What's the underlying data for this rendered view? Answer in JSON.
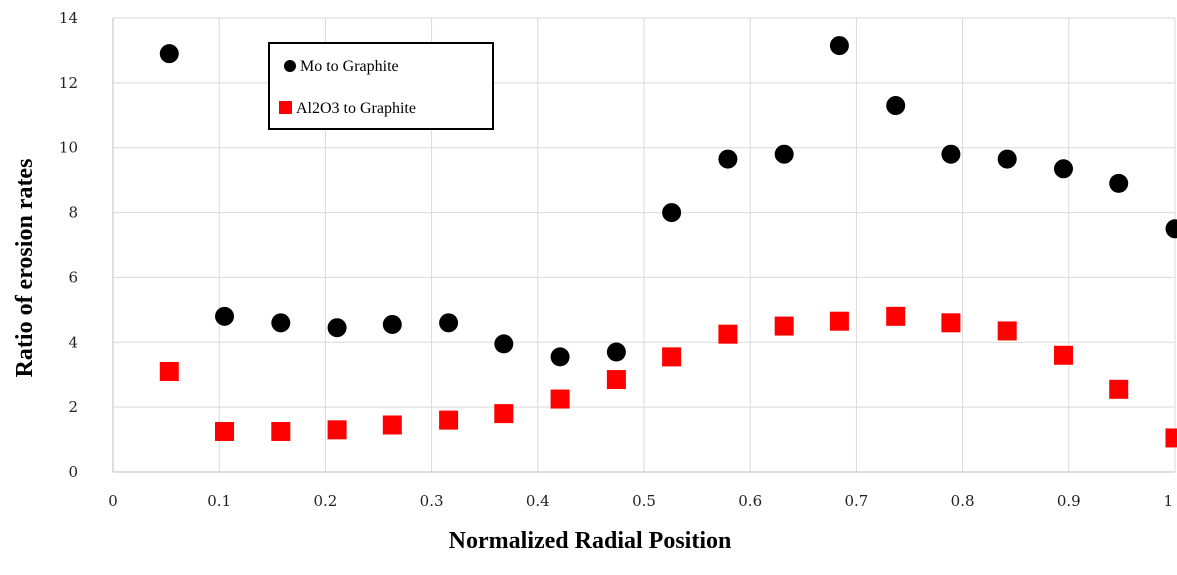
{
  "chart_data": {
    "type": "scatter",
    "xlabel": "Normalized Radial Position",
    "ylabel": "Ratio of erosion rates",
    "xlim": [
      0,
      1
    ],
    "ylim": [
      0,
      14
    ],
    "xticks": [
      0,
      0.1,
      0.2,
      0.3,
      0.4,
      0.5,
      0.6,
      0.7,
      0.8,
      0.9,
      1
    ],
    "xtick_labels": [
      "0",
      "0.1",
      "0.2",
      "0.3",
      "0.4",
      "0.5",
      "0.6",
      "0.7",
      "0.8",
      "0.9",
      "1"
    ],
    "yticks": [
      0,
      2,
      4,
      6,
      8,
      10,
      12,
      14
    ],
    "ytick_labels": [
      "0",
      "2",
      "4",
      "6",
      "8",
      "10",
      "12",
      "14"
    ],
    "grid": true,
    "legend_position": "top-left inside",
    "series": [
      {
        "name": "Mo to Graphite",
        "marker": "circle",
        "color": "#000000",
        "x": [
          0.053,
          0.105,
          0.158,
          0.211,
          0.263,
          0.316,
          0.368,
          0.421,
          0.474,
          0.526,
          0.579,
          0.632,
          0.684,
          0.737,
          0.789,
          0.842,
          0.895,
          0.947,
          1.0
        ],
        "y": [
          12.9,
          4.8,
          4.6,
          4.45,
          4.55,
          4.6,
          3.95,
          3.55,
          3.7,
          8.0,
          9.65,
          9.8,
          13.15,
          11.3,
          9.8,
          9.65,
          9.35,
          8.9,
          7.5
        ]
      },
      {
        "name": "Al2O3 to Graphite",
        "marker": "square",
        "color": "#ff0000",
        "x": [
          0.053,
          0.105,
          0.158,
          0.211,
          0.263,
          0.316,
          0.368,
          0.421,
          0.474,
          0.526,
          0.579,
          0.632,
          0.684,
          0.737,
          0.789,
          0.842,
          0.895,
          0.947,
          1.0
        ],
        "y": [
          3.1,
          1.25,
          1.25,
          1.3,
          1.45,
          1.6,
          1.8,
          2.25,
          2.85,
          3.55,
          4.25,
          4.5,
          4.65,
          4.8,
          4.6,
          4.35,
          3.6,
          2.55,
          1.05
        ]
      }
    ]
  }
}
